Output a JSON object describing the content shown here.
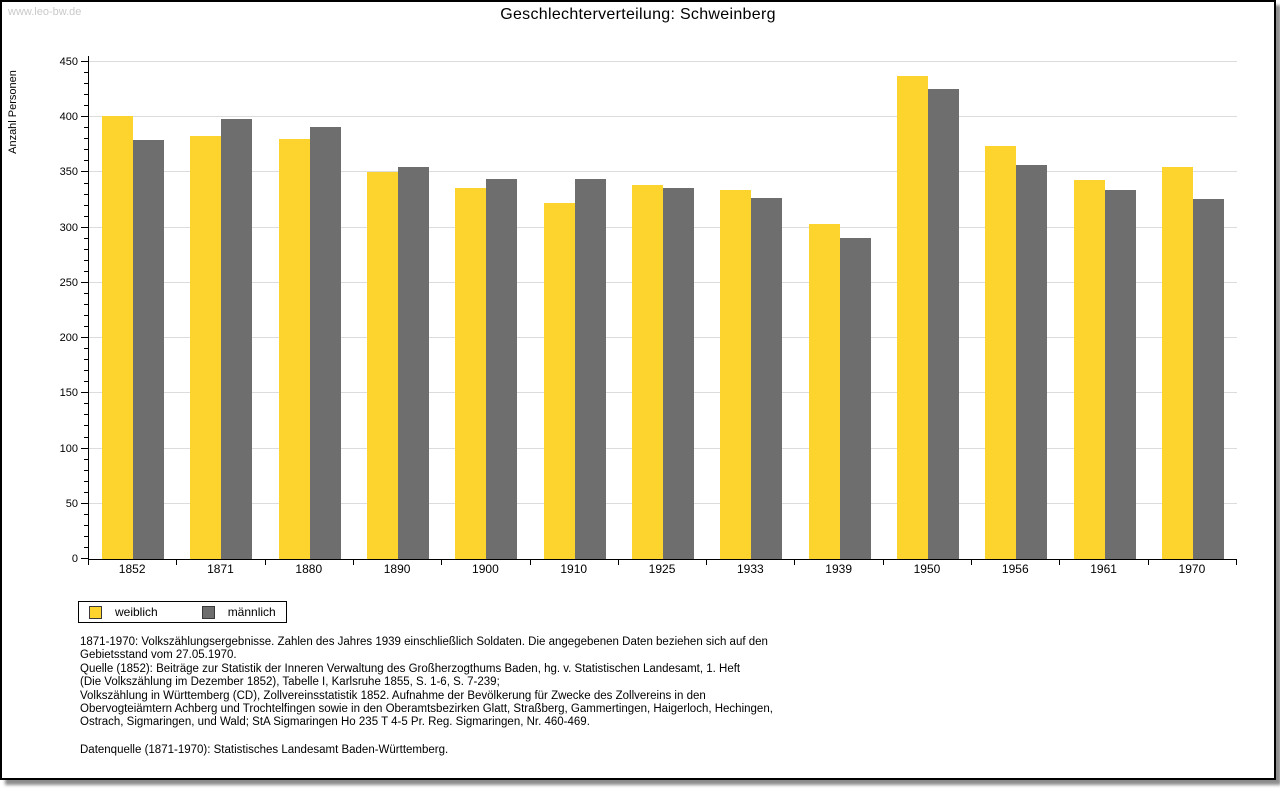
{
  "header": {
    "watermark": "www.leo-bw.de"
  },
  "chart_data": {
    "type": "bar",
    "title": "Geschlechterverteilung: Schweinberg",
    "ylabel": "Anzahl Personen",
    "xlabel": "",
    "ylim": [
      0,
      450
    ],
    "ytick_step": 50,
    "minor_tick_step": 10,
    "grid": true,
    "gridline_color": "#dcdcdc",
    "legend_position": "bottom-left",
    "categories": [
      "1852",
      "1871",
      "1880",
      "1890",
      "1900",
      "1910",
      "1925",
      "1933",
      "1939",
      "1950",
      "1956",
      "1961",
      "1970"
    ],
    "series": [
      {
        "name": "weiblich",
        "color": "#FCD42D",
        "values": [
          401,
          383,
          380,
          350,
          336,
          322,
          339,
          334,
          303,
          437,
          374,
          343,
          355
        ]
      },
      {
        "name": "männlich",
        "color": "#6E6E6E",
        "values": [
          379,
          398,
          391,
          355,
          344,
          344,
          336,
          327,
          291,
          426,
          357,
          334,
          326
        ]
      }
    ]
  },
  "footer": {
    "notes_lines": [
      "1871-1970: Volkszählungsergebnisse. Zahlen des Jahres 1939 einschließlich Soldaten. Die angegebenen Daten beziehen sich auf den",
      "Gebietsstand vom 27.05.1970.",
      "Quelle (1852): Beiträge zur Statistik der Inneren Verwaltung des Großherzogthums Baden, hg. v. Statistischen Landesamt, 1. Heft",
      "(Die Volkszählung im Dezember 1852), Tabelle I, Karlsruhe 1855, S. 1-6, S. 7-239;",
      "Volkszählung in Württemberg (CD), Zollvereinsstatistik 1852. Aufnahme der Bevölkerung für Zwecke des Zollvereins in den",
      "Obervogteiämtern Achberg und Trochtelfingen sowie in den Oberamtsbezirken Glatt, Straßberg, Gammertingen, Haigerloch, Hechingen,",
      "Ostrach, Sigmaringen, und Wald; StA Sigmaringen Ho 235 T 4-5 Pr. Reg. Sigmaringen, Nr. 460-469."
    ],
    "datasource": "Datenquelle (1871-1970): Statistisches Landesamt Baden-Württemberg."
  }
}
